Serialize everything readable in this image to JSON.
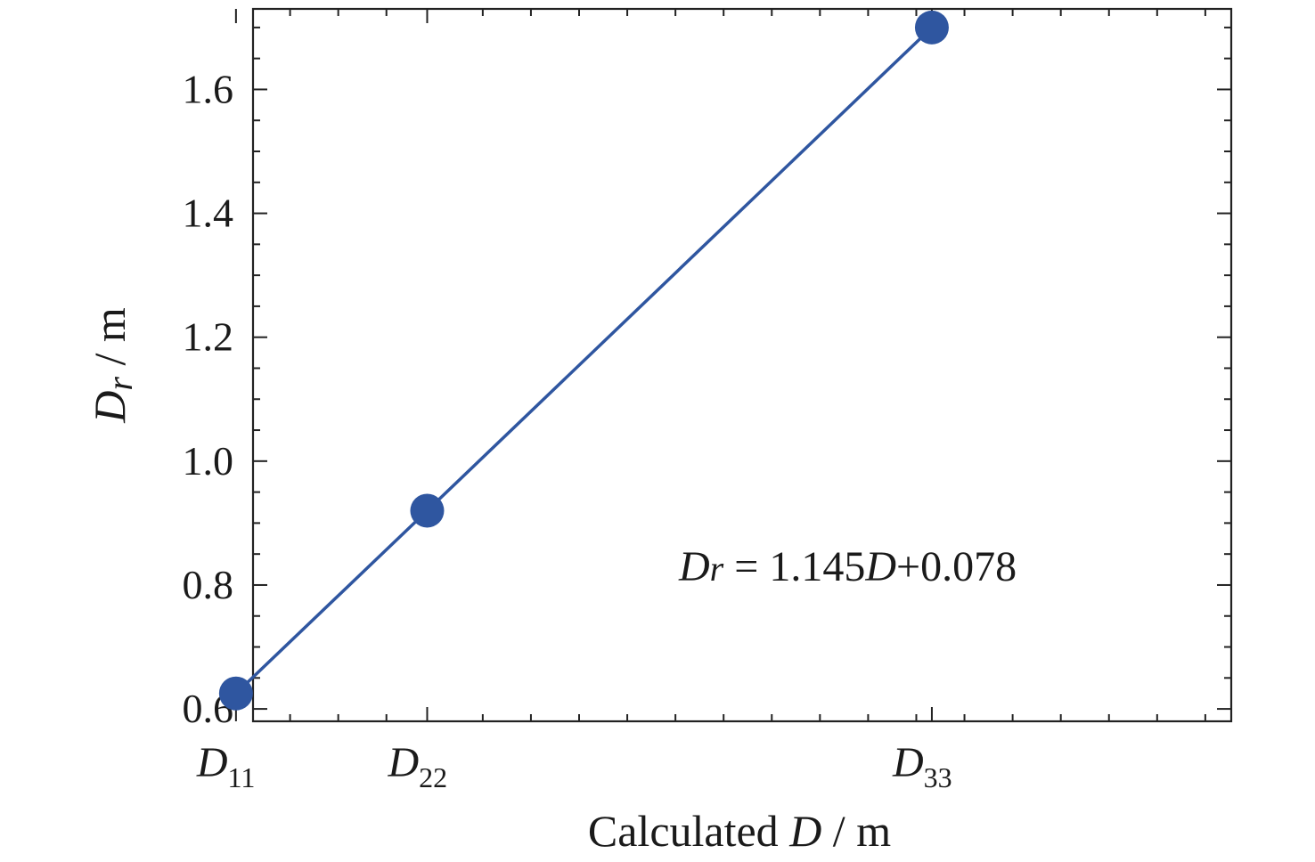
{
  "chart_data": {
    "type": "line",
    "title": "",
    "xlabel": {
      "prefix": "Calculated ",
      "italic": "D",
      "suffix": " / m"
    },
    "ylabel": {
      "italic": "D",
      "sub": "r",
      "suffix": " / m"
    },
    "ylim": [
      0.58,
      1.73
    ],
    "xlim": [
      0.5,
      1.82
    ],
    "yticks": [
      0.6,
      0.8,
      1.0,
      1.2,
      1.4,
      1.6
    ],
    "ytick_labels": [
      "0.6",
      "0.8",
      "1.0",
      "1.2",
      "1.4",
      "1.6"
    ],
    "xticks": [
      {
        "value": 0.477,
        "italic": "D",
        "sub": "11"
      },
      {
        "value": 0.735,
        "italic": "D",
        "sub": "22"
      },
      {
        "value": 1.416,
        "italic": "D",
        "sub": "33"
      }
    ],
    "series": [
      {
        "x": [
          0.477,
          0.735,
          1.416
        ],
        "y": [
          0.625,
          0.92,
          1.7
        ],
        "color": "#2f56a0"
      }
    ],
    "annotation": {
      "lhs_italic": "D",
      "lhs_sub": "r",
      "eq": " = 1.145",
      "mid_italic": "D",
      "tail": "+0.078",
      "x": 1.0,
      "y": 0.835
    },
    "grid": false,
    "legend": "none"
  }
}
